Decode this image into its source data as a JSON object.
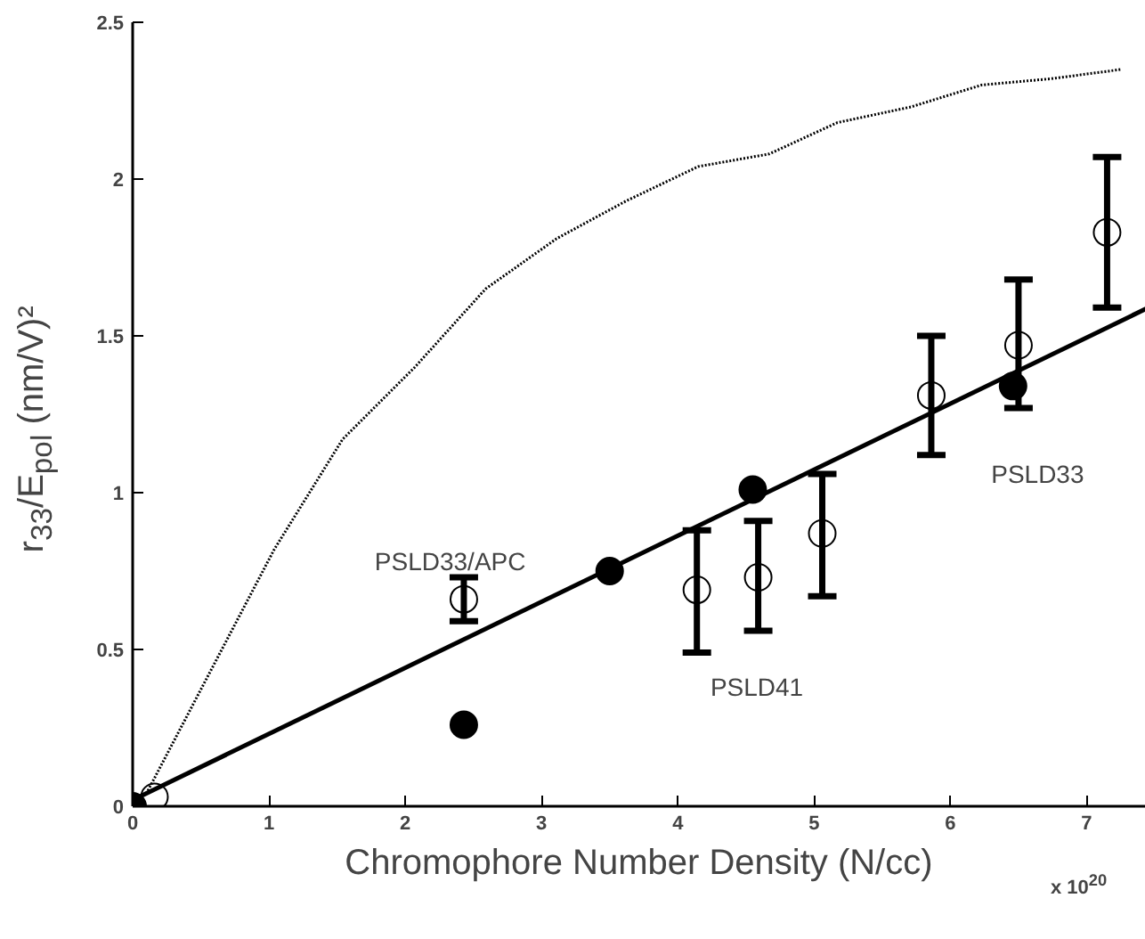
{
  "chart_data": {
    "type": "scatter",
    "xlabel": "Chromophore Number Density  (N/cc)",
    "ylabel": "r$_{33}$/E$_{pol}$  (nm/V)²",
    "xlim": [
      0,
      7.5
    ],
    "ylim": [
      0,
      2.5
    ],
    "xticks": [
      0,
      1,
      2,
      3,
      4,
      5,
      6,
      7
    ],
    "yticks": [
      0,
      0.5,
      1,
      1.5,
      2,
      2.5
    ],
    "grid": false,
    "series": [
      {
        "type": "line",
        "marker": "none",
        "line_style": "dotted",
        "color": "#000000",
        "x": [
          0.1,
          1.04,
          1.54,
          2.07,
          2.59,
          3.11,
          3.62,
          4.15,
          4.67,
          5.17,
          5.71,
          6.23,
          6.74,
          7.26
        ],
        "values": [
          0.04,
          0.82,
          1.17,
          1.4,
          1.65,
          1.81,
          1.93,
          2.04,
          2.08,
          2.18,
          2.23,
          2.3,
          2.32,
          2.35
        ]
      },
      {
        "type": "line",
        "marker": "none",
        "line_style": "solid",
        "color": "#000000",
        "x": [
          0,
          7.5
        ],
        "values": [
          0.02,
          1.6
        ]
      },
      {
        "marker": "circle",
        "color": "#000000",
        "x": [
          0.16,
          2.43,
          4.14,
          4.59,
          5.06,
          5.86,
          6.5,
          7.15
        ],
        "values": [
          0.03,
          0.66,
          0.69,
          0.73,
          0.87,
          1.31,
          1.47,
          1.83
        ],
        "errors": [
          null,
          [
            0.59,
            0.73
          ],
          [
            0.49,
            0.88
          ],
          [
            0.56,
            0.91
          ],
          [
            0.67,
            1.06
          ],
          [
            1.12,
            1.5
          ],
          [
            1.27,
            1.68
          ],
          [
            1.59,
            2.07
          ]
        ]
      },
      {
        "marker": "circle",
        "color": "#000000",
        "x": [
          0,
          2.43,
          3.5,
          4.55,
          6.46
        ],
        "values": [
          0,
          0.26,
          0.75,
          1.01,
          1.34
        ]
      }
    ],
    "annotations": [
      "PSLD33/APC",
      "PSLD41",
      "PSLD33",
      "x 10$^{20}$"
    ]
  }
}
